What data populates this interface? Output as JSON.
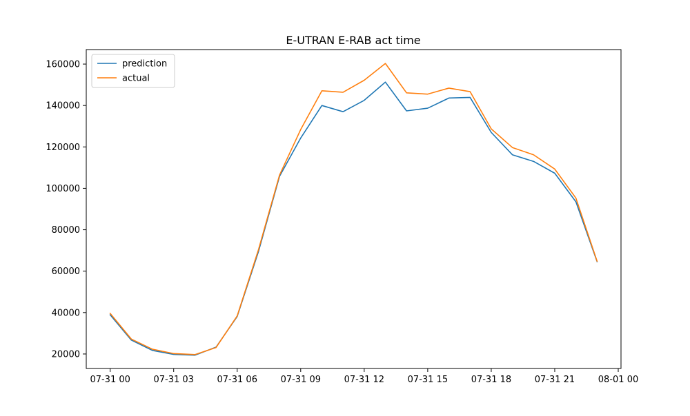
{
  "chart_data": {
    "type": "line",
    "title": "E-UTRAN E-RAB act time",
    "xlabel": "",
    "ylabel": "",
    "x": [
      "07-31 00:00",
      "07-31 01:00",
      "07-31 02:00",
      "07-31 03:00",
      "07-31 04:00",
      "07-31 05:00",
      "07-31 06:00",
      "07-31 07:00",
      "07-31 08:00",
      "07-31 09:00",
      "07-31 10:00",
      "07-31 11:00",
      "07-31 12:00",
      "07-31 13:00",
      "07-31 14:00",
      "07-31 15:00",
      "07-31 16:00",
      "07-31 17:00",
      "07-31 18:00",
      "07-31 19:00",
      "07-31 20:00",
      "07-31 21:00",
      "07-31 22:00",
      "07-31 23:00"
    ],
    "xlim": [
      "07-31 00 minus ~1.1h",
      "07-31 23 plus ~1.1h"
    ],
    "x_ticks": [
      "07-31 00",
      "07-31 03",
      "07-31 06",
      "07-31 09",
      "07-31 12",
      "07-31 15",
      "07-31 18",
      "07-31 21",
      "08-01 00"
    ],
    "ylim": [
      13000,
      167000
    ],
    "y_ticks": [
      "20000",
      "40000",
      "60000",
      "80000",
      "100000",
      "120000",
      "140000",
      "160000"
    ],
    "grid": false,
    "legend_position": "top-left",
    "series": [
      {
        "name": "prediction",
        "color": "#1f77b4",
        "values": [
          38900,
          26700,
          21700,
          19800,
          19400,
          23300,
          38100,
          69300,
          105800,
          124300,
          140000,
          137000,
          142500,
          151300,
          137400,
          138700,
          143600,
          143900,
          127000,
          116200,
          113000,
          107300,
          93500,
          64600
        ]
      },
      {
        "name": "actual",
        "color": "#ff7f0e",
        "values": [
          39600,
          27200,
          22300,
          20200,
          19700,
          23100,
          38400,
          70200,
          106400,
          128400,
          147100,
          146400,
          152200,
          160300,
          146100,
          145500,
          148400,
          146700,
          128700,
          119700,
          116200,
          109300,
          95300,
          64800
        ]
      }
    ]
  }
}
